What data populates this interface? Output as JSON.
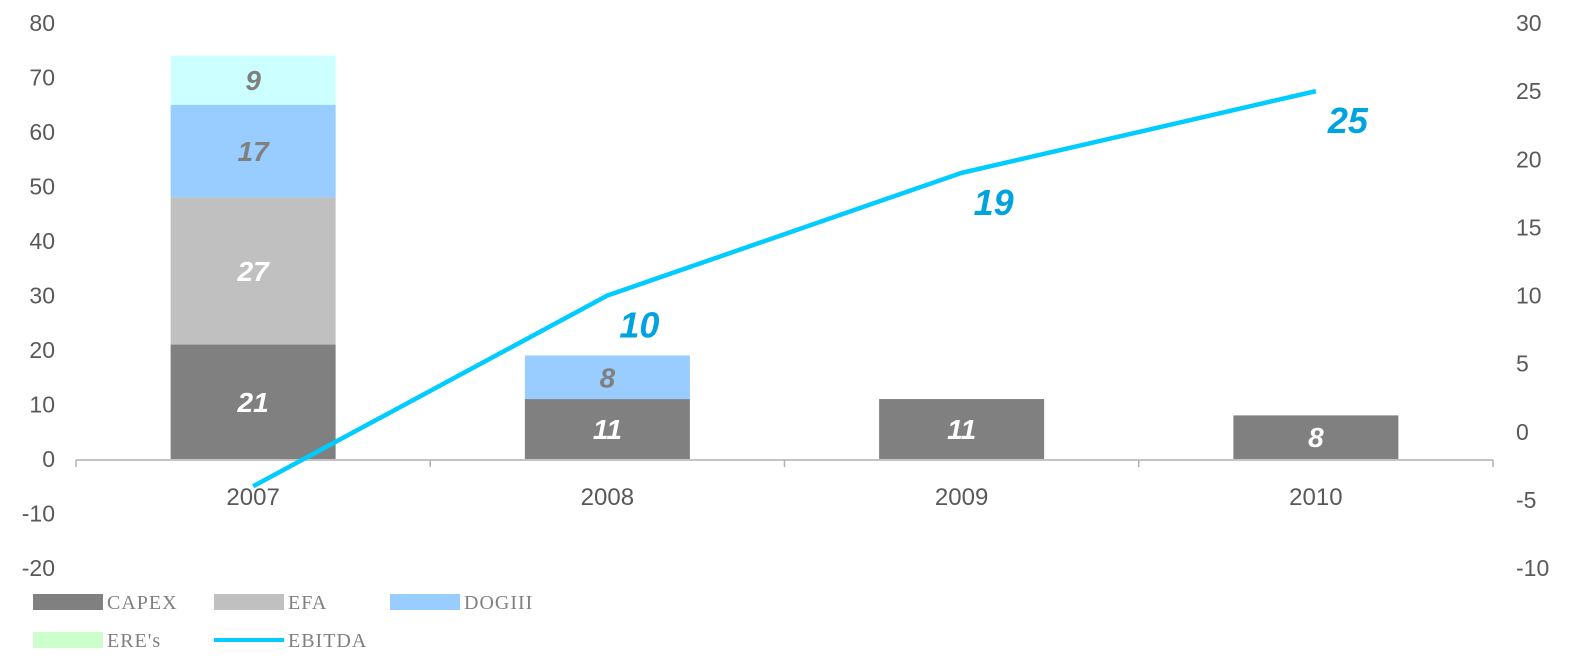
{
  "chart_data": {
    "type": "bar",
    "stacked": true,
    "categories": [
      "2007",
      "2008",
      "2009",
      "2010"
    ],
    "series": [
      {
        "name": "CAPEX",
        "values": [
          21,
          11,
          11,
          8
        ],
        "color": "#808080",
        "label_color": "#ffffff"
      },
      {
        "name": "EFA",
        "values": [
          27,
          0,
          0,
          0
        ],
        "color": "#c0c0c0",
        "label_color": "#ffffff"
      },
      {
        "name": "DOGIII",
        "values": [
          17,
          8,
          0,
          0
        ],
        "color": "#99ccff",
        "label_color": "#808080"
      },
      {
        "name": "ERE's",
        "values": [
          9,
          0,
          0,
          0
        ],
        "color": "#ccffff",
        "label_color": "#808080"
      }
    ],
    "line_series": {
      "name": "EBITDA",
      "values": [
        -4,
        10,
        19,
        25
      ],
      "axis": "right",
      "color": "#00ccff",
      "label_color": "#00a3e0"
    },
    "left_axis": {
      "ticks": [
        "80",
        "70",
        "60",
        "50",
        "40",
        "30",
        "20",
        "10",
        "0",
        "-10",
        "-20"
      ],
      "ylim": [
        -20,
        80
      ]
    },
    "right_axis": {
      "ticks": [
        "30",
        "25",
        "20",
        "15",
        "10",
        "5",
        "0",
        "-5",
        "-10"
      ],
      "ylim": [
        -10,
        30
      ]
    },
    "legend": [
      {
        "name": "CAPEX",
        "label": "CAPEX",
        "swatch": "box",
        "color": "#808080"
      },
      {
        "name": "EFA",
        "label": "EFA",
        "swatch": "box",
        "color": "#c0c0c0"
      },
      {
        "name": "DOGIII",
        "label": "DOGIII",
        "swatch": "box",
        "color": "#99ccff"
      },
      {
        "name": "EREs",
        "label": "ERE's",
        "swatch": "box",
        "color": "#ccffcc"
      },
      {
        "name": "EBITDA",
        "label": "EBITDA",
        "swatch": "line",
        "color": "#00ccff"
      }
    ],
    "legend_position": "bottom-left",
    "grid": false
  }
}
